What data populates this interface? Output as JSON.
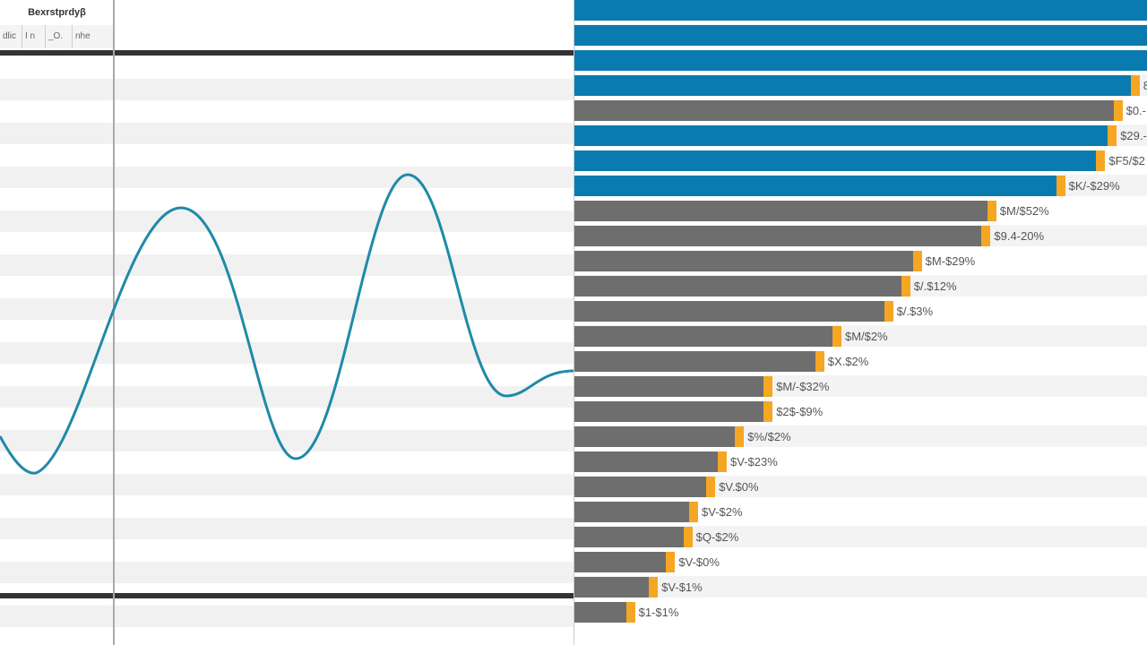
{
  "left_panel": {
    "header": "Bexrstprdyβ",
    "subheaders": [
      "dlic",
      "I n",
      "_O.",
      "nhe"
    ],
    "line_color": "#1f8aa8"
  },
  "chart_data": {
    "type": "bar",
    "orientation": "horizontal",
    "colors": {
      "blue": "#0a7bb0",
      "gray": "#6e6e6e",
      "cap": "#f5a623"
    },
    "xlim": [
      0,
      100
    ],
    "bars": [
      {
        "value": 100,
        "color": "blue",
        "label": ""
      },
      {
        "value": 100,
        "color": "blue",
        "label": ""
      },
      {
        "value": 100,
        "color": "blue",
        "label": ""
      },
      {
        "value": 97,
        "color": "blue",
        "label": "8"
      },
      {
        "value": 94,
        "color": "gray",
        "label": "$0.-"
      },
      {
        "value": 93,
        "color": "blue",
        "label": "$29.-"
      },
      {
        "value": 91,
        "color": "blue",
        "label": "$F5/$2"
      },
      {
        "value": 84,
        "color": "blue",
        "label": "$K/-$29%"
      },
      {
        "value": 72,
        "color": "gray",
        "label": "$M/$52%"
      },
      {
        "value": 71,
        "color": "gray",
        "label": "$9.4-20%"
      },
      {
        "value": 59,
        "color": "gray",
        "label": "$M-$29%"
      },
      {
        "value": 57,
        "color": "gray",
        "label": "$/.$12%"
      },
      {
        "value": 54,
        "color": "gray",
        "label": "$/.$3%"
      },
      {
        "value": 45,
        "color": "gray",
        "label": "$M/$2%"
      },
      {
        "value": 42,
        "color": "gray",
        "label": "$X.$2%"
      },
      {
        "value": 33,
        "color": "gray",
        "label": "$M/-$32%"
      },
      {
        "value": 33,
        "color": "gray",
        "label": "$2$-$9%"
      },
      {
        "value": 28,
        "color": "gray",
        "label": "$%/$2%"
      },
      {
        "value": 25,
        "color": "gray",
        "label": "$V-$23%"
      },
      {
        "value": 23,
        "color": "gray",
        "label": "$V.$0%"
      },
      {
        "value": 20,
        "color": "gray",
        "label": "$V-$2%"
      },
      {
        "value": 19,
        "color": "gray",
        "label": "$Q-$2%"
      },
      {
        "value": 16,
        "color": "gray",
        "label": "$V-$0%"
      },
      {
        "value": 13,
        "color": "gray",
        "label": "$V-$1%"
      },
      {
        "value": 9,
        "color": "gray",
        "label": "$1-$1%"
      }
    ]
  }
}
